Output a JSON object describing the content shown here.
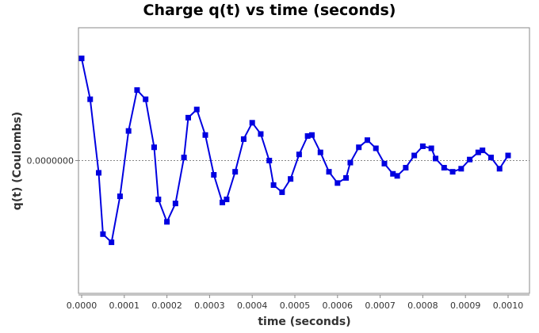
{
  "chart_data": {
    "type": "line",
    "title": "Charge q(t) vs time (seconds)",
    "xlabel": "time (seconds)",
    "ylabel": "q(t) (Coulombs)",
    "xlim": [
      0.0,
      0.001
    ],
    "ylim": [
      -1.3,
      1.3
    ],
    "x_ticks": [
      "0.0000",
      "0.0001",
      "0.0002",
      "0.0003",
      "0.0004",
      "0.0005",
      "0.0006",
      "0.0007",
      "0.0008",
      "0.0009",
      "0.0010"
    ],
    "y_ticks": [
      "0.0000000"
    ],
    "zero_line": "dashed",
    "grid": false,
    "legend": "none",
    "series": [
      {
        "color": "#0000e0",
        "marker": "square",
        "x": [
          0.0,
          2e-05,
          4e-05,
          5e-05,
          7e-05,
          9e-05,
          0.00011,
          0.00013,
          0.00015,
          0.00017,
          0.00018,
          0.0002,
          0.00022,
          0.00024,
          0.00025,
          0.00027,
          0.00029,
          0.00031,
          0.00033,
          0.00034,
          0.00036,
          0.00038,
          0.0004,
          0.00042,
          0.00044,
          0.00045,
          0.00047,
          0.00049,
          0.00051,
          0.00053,
          0.00054,
          0.00056,
          0.00058,
          0.0006,
          0.00062,
          0.00063,
          0.00065,
          0.00067,
          0.00069,
          0.00071,
          0.00073,
          0.00074,
          0.00076,
          0.00078,
          0.0008,
          0.00082,
          0.00083,
          0.00085,
          0.00087,
          0.00089,
          0.00091,
          0.00093,
          0.00094,
          0.00096,
          0.00098,
          0.001
        ],
        "y": [
          1.0,
          0.6,
          -0.12,
          -0.72,
          -0.8,
          -0.35,
          0.29,
          0.69,
          0.6,
          0.13,
          -0.38,
          -0.6,
          -0.42,
          0.03,
          0.42,
          0.5,
          0.25,
          -0.14,
          -0.41,
          -0.38,
          -0.11,
          0.21,
          0.37,
          0.26,
          0.0,
          -0.24,
          -0.31,
          -0.18,
          0.06,
          0.24,
          0.25,
          0.08,
          -0.11,
          -0.22,
          -0.17,
          -0.02,
          0.13,
          0.2,
          0.12,
          -0.03,
          -0.13,
          -0.15,
          -0.07,
          0.05,
          0.14,
          0.12,
          0.02,
          -0.07,
          -0.11,
          -0.08,
          0.01,
          0.08,
          0.1,
          0.03,
          -0.08,
          0.05
        ]
      }
    ]
  }
}
